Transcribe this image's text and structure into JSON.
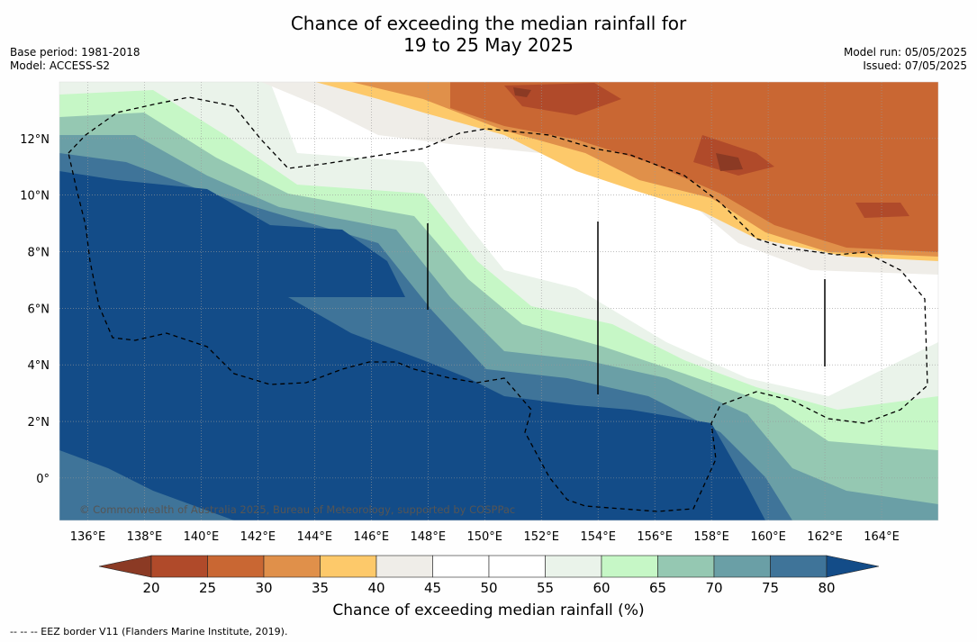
{
  "header": {
    "title_line1": "Chance of exceeding the median rainfall for",
    "title_line2": "19 to 25 May 2025",
    "base_period": "Base period: 1981-2018",
    "model": "Model: ACCESS-S2",
    "model_run": "Model run: 05/05/2025",
    "issued": "Issued: 07/05/2025"
  },
  "map": {
    "lon_range": [
      135,
      166
    ],
    "lat_range": [
      -1.5,
      14
    ],
    "lon_ticks": [
      "136°E",
      "138°E",
      "140°E",
      "142°E",
      "144°E",
      "146°E",
      "148°E",
      "150°E",
      "152°E",
      "154°E",
      "156°E",
      "158°E",
      "160°E",
      "162°E",
      "164°E"
    ],
    "lat_ticks": [
      "12°N",
      "10°N",
      "8°N",
      "6°N",
      "4°N",
      "2°N",
      "0°"
    ],
    "copyright": "© Commonwealth of Australia 2025, Bureau of Meteorology, supported by COSPPac"
  },
  "colorbar": {
    "title": "Chance of exceeding median rainfall (%)",
    "ticks": [
      "20",
      "25",
      "30",
      "35",
      "40",
      "45",
      "50",
      "55",
      "60",
      "65",
      "70",
      "75",
      "80"
    ],
    "colors": [
      "#8b3a24",
      "#b04a2a",
      "#c96733",
      "#e0904a",
      "#fdc96a",
      "#efede8",
      "#ffffff",
      "#ffffff",
      "#eaf3ea",
      "#c6f7c6",
      "#95c8b2",
      "#6a9fa6",
      "#3f7499",
      "#134c88"
    ]
  },
  "footer": {
    "eez_legend": "--  --  -- EEZ border V11 (Flanders Marine Institute, 2019)."
  }
}
